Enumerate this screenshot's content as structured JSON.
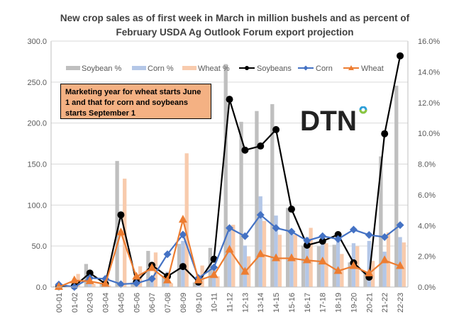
{
  "chart_data": {
    "type": "bar",
    "title": "New crop sales as of first week in March in million bushels and as percent of February USDA Ag Outlook Forum export projection",
    "title_lines": [
      "New crop sales as of first week in March in million bushels and as percent of",
      "February USDA Ag Outlook Forum export projection"
    ],
    "xlabel": "",
    "ylabel": "",
    "y2label": "",
    "ylim": [
      0,
      300
    ],
    "y2lim": [
      0,
      16
    ],
    "yticks": [
      "0.0",
      "50.0",
      "100.0",
      "150.0",
      "200.0",
      "250.0",
      "300.0"
    ],
    "y2ticks": [
      "0.0%",
      "2.0%",
      "4.0%",
      "6.0%",
      "8.0%",
      "10.0%",
      "12.0%",
      "14.0%",
      "16.0%"
    ],
    "grid": true,
    "legend_position": "top",
    "categories": [
      "00-01",
      "01-02",
      "02-03",
      "03-04",
      "04-05",
      "05-06",
      "06-07",
      "07-08",
      "08-09",
      "09-10",
      "10-11",
      "11-12",
      "12-13",
      "13-14",
      "14-15",
      "15-16",
      "16-17",
      "17-18",
      "18-19",
      "19-20",
      "20-21",
      "21-22",
      "22-23"
    ],
    "series": [
      {
        "name": "Soybean %",
        "type": "bar",
        "axis": "right",
        "color": "#bfbfbf",
        "values": [
          0.05,
          0.1,
          1.5,
          0.2,
          8.2,
          0.3,
          2.35,
          0.75,
          2.8,
          0.3,
          2.55,
          14.5,
          10.75,
          11.45,
          11.9,
          5.15,
          2.7,
          2.65,
          2.75,
          1.6,
          1.0,
          8.5,
          13.1
        ]
      },
      {
        "name": "Corn %",
        "type": "bar",
        "axis": "right",
        "color": "#b4c7e7",
        "values": [
          0.1,
          0.05,
          0.3,
          0.4,
          0.1,
          0.15,
          0.5,
          1.0,
          3.0,
          0.3,
          1.2,
          3.9,
          2.7,
          5.9,
          4.65,
          3.6,
          3.25,
          3.15,
          3.3,
          2.85,
          3.0,
          2.3,
          3.25
        ]
      },
      {
        "name": "Wheat %",
        "type": "bar",
        "axis": "right",
        "color": "#f8cbad",
        "values": [
          0.1,
          0.85,
          0.2,
          0.1,
          7.05,
          1.35,
          2.25,
          0.25,
          8.7,
          1.4,
          0.7,
          4.05,
          2.0,
          4.3,
          3.4,
          3.4,
          3.85,
          2.85,
          2.15,
          2.65,
          1.7,
          3.55,
          2.9
        ]
      },
      {
        "name": "Soybeans",
        "type": "line",
        "axis": "left",
        "color": "#000000",
        "marker": "circle",
        "values": [
          0.5,
          1,
          17,
          4,
          88,
          6,
          26.5,
          13,
          25,
          6,
          34,
          229,
          167,
          172,
          192,
          95,
          51,
          56,
          64,
          29.5,
          12,
          187,
          282
        ]
      },
      {
        "name": "Corn",
        "type": "line",
        "axis": "left",
        "color": "#4472c4",
        "marker": "diamond",
        "values": [
          3,
          0,
          11,
          10,
          3.5,
          4.5,
          10,
          40,
          64,
          11,
          24,
          72,
          62,
          88,
          72,
          67.5,
          56.5,
          62,
          58.5,
          70,
          63.5,
          61,
          75.5
        ]
      },
      {
        "name": "Wheat",
        "type": "line",
        "axis": "left",
        "color": "#ed7d31",
        "marker": "triangle",
        "values": [
          0,
          8,
          7,
          3.5,
          66.5,
          12.5,
          23,
          8,
          82,
          8,
          14.5,
          45.5,
          18.5,
          40,
          35,
          35,
          32.5,
          31,
          19.5,
          25.5,
          16.5,
          32.5,
          25.5
        ]
      }
    ],
    "annotations": [
      "Marketing year for wheat starts June 1 and that for corn and soybeans starts September 1"
    ]
  },
  "note": "Marketing year for wheat starts June 1 and that for corn and soybeans starts September 1",
  "logo": {
    "text": "DTN",
    "ring_colors": [
      "#2e9fd9",
      "#8cc63f"
    ]
  }
}
